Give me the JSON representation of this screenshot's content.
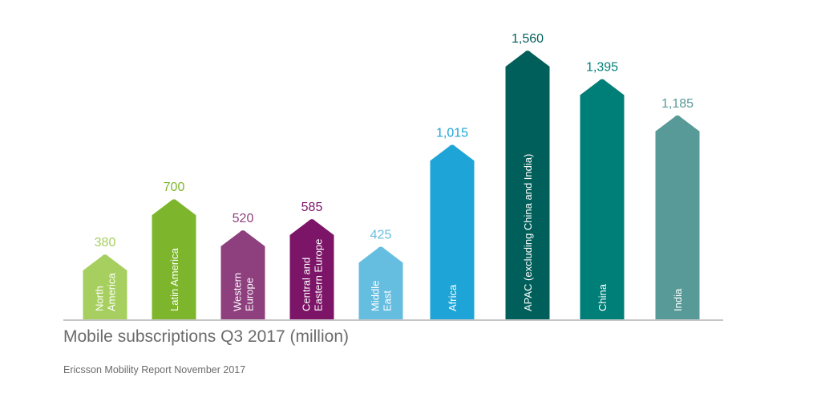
{
  "chart_data": {
    "type": "bar",
    "title": "Mobile subscriptions Q3 2017 (million)",
    "source": "Ericsson Mobility Report November 2017",
    "categories": [
      [
        "North",
        "America"
      ],
      [
        "Latin America"
      ],
      [
        "Western",
        "Europe"
      ],
      [
        "Central and",
        "Eastern Europe"
      ],
      [
        "Middle",
        "East"
      ],
      [
        "Africa"
      ],
      [
        "APAC (excluding China and India)"
      ],
      [
        "China"
      ],
      [
        "India"
      ]
    ],
    "values": [
      380,
      700,
      520,
      585,
      425,
      1015,
      1560,
      1395,
      1185
    ],
    "value_labels": [
      "380",
      "700",
      "520",
      "585",
      "425",
      "1,015",
      "1,560",
      "1,395",
      "1,185"
    ],
    "colors": [
      "#a6cf5f",
      "#7db62c",
      "#8e3f7e",
      "#7c1467",
      "#65bde0",
      "#1ea4d6",
      "#005f5a",
      "#007e78",
      "#579a97"
    ],
    "ylim": [
      0,
      1560
    ],
    "grid": false,
    "legend": "none"
  }
}
